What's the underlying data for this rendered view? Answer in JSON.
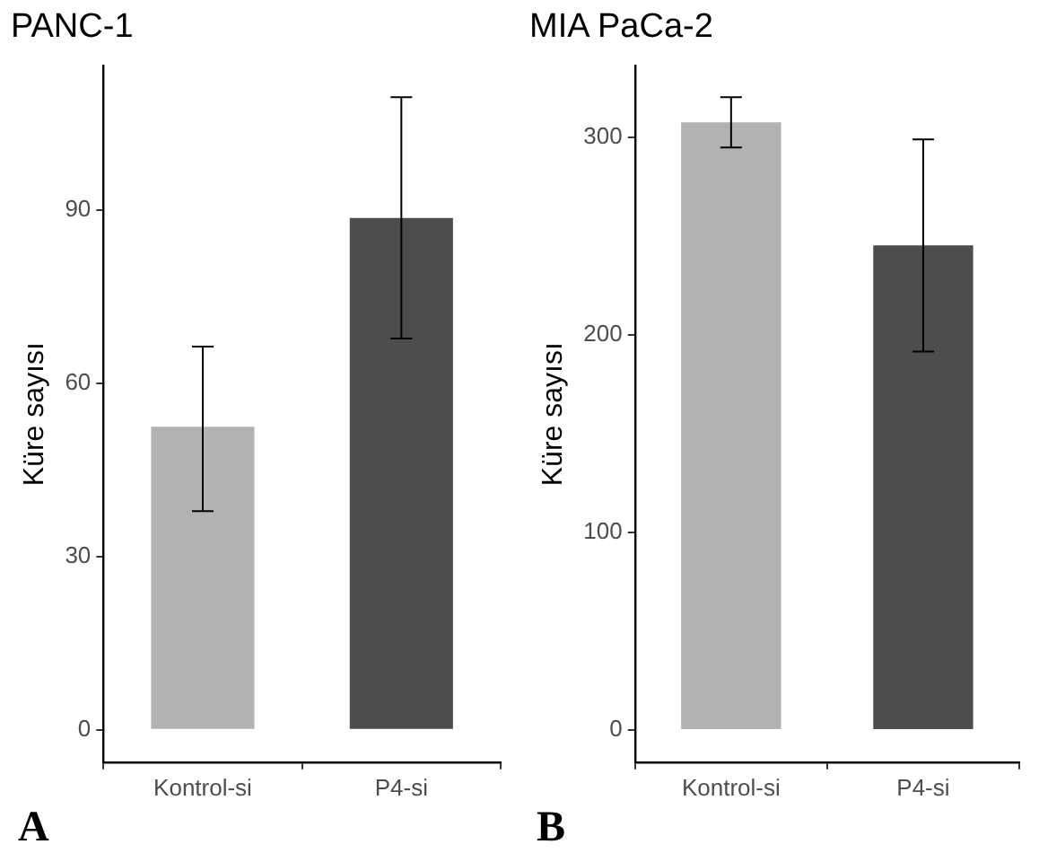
{
  "chart_data": [
    {
      "type": "bar",
      "title": "PANC-1",
      "ylabel": "Küre sayısı",
      "categories": [
        "Kontrol-si",
        "P4-si"
      ],
      "values": [
        52.5,
        88.7
      ],
      "colors": [
        "#b2b2b2",
        "#4d4d4d"
      ],
      "errors": [
        [
          37.9,
          66.4
        ],
        [
          67.8,
          109.6
        ]
      ],
      "ylim": [
        -5.6,
        115
      ],
      "yticks": [
        0,
        30,
        60,
        90
      ],
      "grid": false,
      "legend": false,
      "annotations": [
        "A"
      ]
    },
    {
      "type": "bar",
      "title": "MIA PaCa-2",
      "ylabel": "Küre sayısı",
      "categories": [
        "Kontrol-si",
        "P4-si"
      ],
      "values": [
        307.4,
        245.2
      ],
      "colors": [
        "#b2b2b2",
        "#4d4d4d"
      ],
      "errors": [
        [
          294.7,
          320.2
        ],
        [
          191.5,
          298.8
        ]
      ],
      "ylim": [
        -16.3,
        335.9
      ],
      "yticks": [
        0,
        100,
        200,
        300
      ],
      "grid": false,
      "legend": false,
      "annotations": [
        "B"
      ]
    }
  ]
}
